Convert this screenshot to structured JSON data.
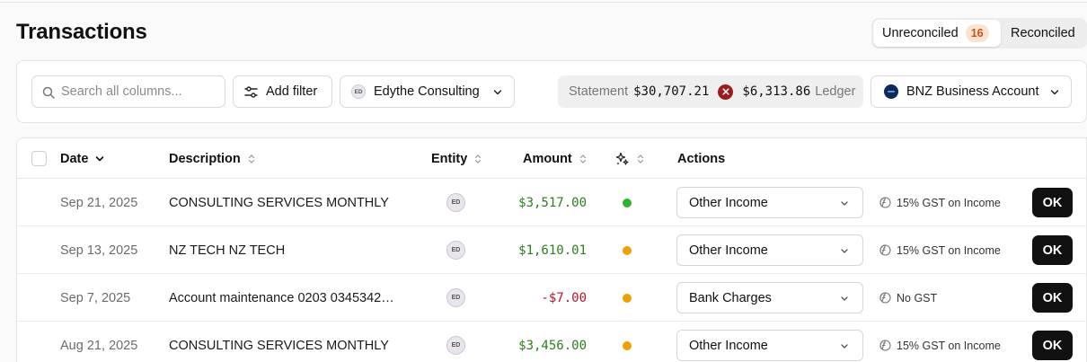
{
  "page": {
    "title": "Transactions"
  },
  "tabs": {
    "unreconciled": "Unreconciled",
    "unreconciled_count": "16",
    "reconciled": "Reconciled"
  },
  "toolbar": {
    "search_placeholder": "Search all columns...",
    "add_filter": "Add filter",
    "entity_initials": "ED",
    "entity": "Edythe Consulting",
    "statement_label": "Statement",
    "statement_amount": "$30,707.21",
    "ledger_amount": "$6,313.86",
    "ledger_label": "Ledger",
    "bank_account": "BNZ Business Account"
  },
  "columns": {
    "date": "Date",
    "description": "Description",
    "entity": "Entity",
    "amount": "Amount",
    "actions": "Actions"
  },
  "colors": {
    "green": "#2fb52a",
    "amber": "#f0a000",
    "positive": "#2e7d1f",
    "negative": "#b0172a"
  },
  "rows": [
    {
      "date": "Sep 21, 2025",
      "description": "CONSULTING SERVICES MONTHLY",
      "entity": "ED",
      "amount": "$3,517.00",
      "sign": "pos",
      "status": "green",
      "category": "Other Income",
      "gst": "15% GST on Income",
      "ok": "OK"
    },
    {
      "date": "Sep 13, 2025",
      "description": "NZ TECH NZ TECH",
      "entity": "ED",
      "amount": "$1,610.01",
      "sign": "pos",
      "status": "amber",
      "category": "Other Income",
      "gst": "15% GST on Income",
      "ok": "OK"
    },
    {
      "date": "Sep 7, 2025",
      "description": "Account maintenance 0203 0345342…",
      "entity": "ED",
      "amount": "-$7.00",
      "sign": "neg",
      "status": "amber",
      "category": "Bank Charges",
      "gst": "No GST",
      "ok": "OK"
    },
    {
      "date": "Aug 21, 2025",
      "description": "CONSULTING SERVICES MONTHLY",
      "entity": "ED",
      "amount": "$3,456.00",
      "sign": "pos",
      "status": "amber",
      "category": "Other Income",
      "gst": "15% GST on Income",
      "ok": "OK"
    }
  ]
}
